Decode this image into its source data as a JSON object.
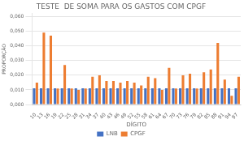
{
  "chart_data": {
    "type": "bar",
    "title": "TESTE  DE SOMA PARA OS GASTOS COM CPGF",
    "xlabel": "DÍGITO",
    "ylabel": "PROPORÇÃO",
    "categories": [
      "10",
      "13",
      "16",
      "19",
      "22",
      "25",
      "28",
      "31",
      "34",
      "37",
      "40",
      "43",
      "46",
      "49",
      "52",
      "55",
      "58",
      "61",
      "64",
      "67",
      "70",
      "73",
      "76",
      "79",
      "82",
      "85",
      "88",
      "91",
      "94",
      "97"
    ],
    "series": [
      {
        "name": "LNB",
        "color": "#4472c4",
        "values": [
          0.0111,
          0.0111,
          0.0111,
          0.0111,
          0.0111,
          0.0111,
          0.0111,
          0.0111,
          0.0111,
          0.0111,
          0.0111,
          0.0111,
          0.0111,
          0.0111,
          0.0111,
          0.0111,
          0.0111,
          0.0111,
          0.0111,
          0.0111,
          0.0111,
          0.0111,
          0.0111,
          0.0111,
          0.0111,
          0.0111,
          0.0111,
          0.0111,
          0.0111,
          0.0111
        ]
      },
      {
        "name": "CPGF",
        "color": "#ed7d31",
        "values": [
          0.015,
          0.049,
          0.047,
          0.011,
          0.027,
          0.011,
          0.01,
          0.011,
          0.019,
          0.02,
          0.016,
          0.016,
          0.015,
          0.016,
          0.015,
          0.013,
          0.019,
          0.018,
          0.01,
          0.025,
          0.011,
          0.02,
          0.021,
          0.011,
          0.022,
          0.024,
          0.042,
          0.017,
          0.006,
          0.019
        ]
      }
    ],
    "ylim": [
      0,
      0.062
    ],
    "yticks": [
      {
        "value": 0.0,
        "label": "0,000"
      },
      {
        "value": 0.01,
        "label": "0,010"
      },
      {
        "value": 0.02,
        "label": "0,020"
      },
      {
        "value": 0.03,
        "label": "0,030"
      },
      {
        "value": 0.04,
        "label": "0,040"
      },
      {
        "value": 0.05,
        "label": "0,050"
      },
      {
        "value": 0.06,
        "label": "0,060"
      }
    ],
    "grid": true,
    "legend": "bottom"
  }
}
